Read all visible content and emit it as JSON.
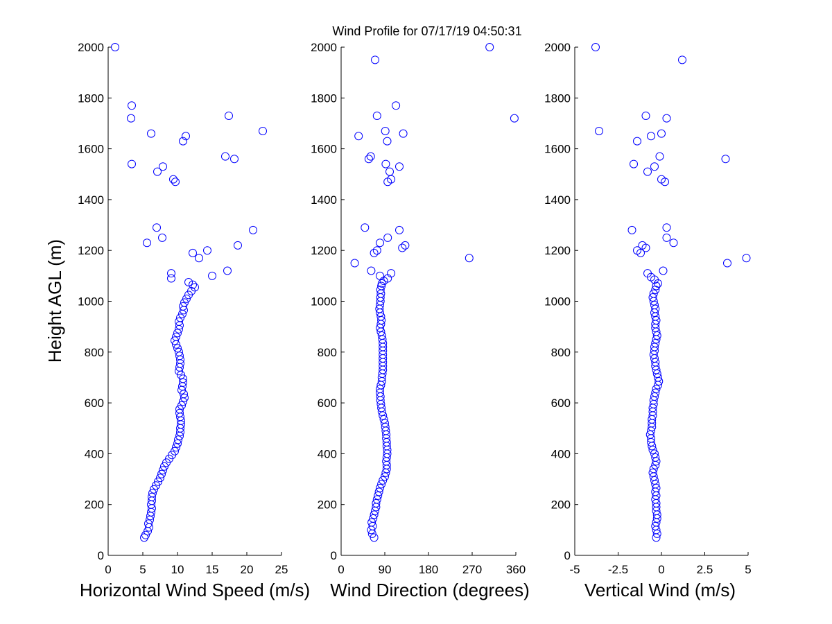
{
  "chart_data": [
    {
      "id": "speed",
      "type": "scatter",
      "title": "Wind Profile for  07/17/19 04:50:31",
      "xlabel": "Horizontal Wind Speed (m/s)",
      "ylabel": "Height AGL (m)",
      "xlim": [
        0,
        25
      ],
      "ylim": [
        0,
        2000
      ],
      "xticks": [
        "0",
        "5",
        "10",
        "15",
        "20",
        "25"
      ],
      "yticks": [
        "0",
        "200",
        "400",
        "600",
        "800",
        "1000",
        "1200",
        "1400",
        "1600",
        "1800",
        "2000"
      ],
      "marker_color": "#0000ff",
      "points": [
        [
          5.2,
          70
        ],
        [
          5.4,
          80
        ],
        [
          5.7,
          95
        ],
        [
          5.9,
          110
        ],
        [
          5.8,
          125
        ],
        [
          6.0,
          140
        ],
        [
          6.1,
          155
        ],
        [
          6.2,
          170
        ],
        [
          6.3,
          185
        ],
        [
          6.2,
          200
        ],
        [
          6.3,
          215
        ],
        [
          6.3,
          230
        ],
        [
          6.4,
          245
        ],
        [
          6.6,
          260
        ],
        [
          6.9,
          275
        ],
        [
          7.2,
          290
        ],
        [
          7.5,
          305
        ],
        [
          7.7,
          320
        ],
        [
          7.9,
          335
        ],
        [
          8.1,
          350
        ],
        [
          8.4,
          365
        ],
        [
          8.8,
          380
        ],
        [
          9.2,
          395
        ],
        [
          9.6,
          410
        ],
        [
          9.8,
          425
        ],
        [
          10.0,
          440
        ],
        [
          10.1,
          455
        ],
        [
          10.3,
          470
        ],
        [
          10.4,
          485
        ],
        [
          10.4,
          500
        ],
        [
          10.5,
          515
        ],
        [
          10.5,
          530
        ],
        [
          10.4,
          545
        ],
        [
          10.3,
          560
        ],
        [
          10.3,
          575
        ],
        [
          10.6,
          590
        ],
        [
          10.8,
          605
        ],
        [
          11.0,
          620
        ],
        [
          10.9,
          635
        ],
        [
          10.6,
          650
        ],
        [
          10.7,
          665
        ],
        [
          10.8,
          680
        ],
        [
          10.8,
          695
        ],
        [
          10.5,
          710
        ],
        [
          10.2,
          725
        ],
        [
          10.3,
          740
        ],
        [
          10.4,
          755
        ],
        [
          10.4,
          770
        ],
        [
          10.3,
          785
        ],
        [
          10.2,
          800
        ],
        [
          10.0,
          815
        ],
        [
          9.8,
          830
        ],
        [
          9.6,
          845
        ],
        [
          9.8,
          860
        ],
        [
          10.0,
          875
        ],
        [
          10.2,
          890
        ],
        [
          10.3,
          905
        ],
        [
          10.2,
          920
        ],
        [
          10.4,
          935
        ],
        [
          10.7,
          950
        ],
        [
          10.9,
          965
        ],
        [
          10.8,
          980
        ],
        [
          11.0,
          995
        ],
        [
          11.3,
          1010
        ],
        [
          11.6,
          1025
        ],
        [
          12.0,
          1040
        ],
        [
          12.5,
          1055
        ],
        [
          12.2,
          1065
        ],
        [
          11.6,
          1075
        ],
        [
          9.1,
          1090
        ],
        [
          9.1,
          1110
        ],
        [
          13.1,
          1170
        ],
        [
          12.2,
          1190
        ],
        [
          14.3,
          1200
        ],
        [
          18.7,
          1220
        ],
        [
          5.6,
          1230
        ],
        [
          7.8,
          1250
        ],
        [
          7.0,
          1290
        ],
        [
          20.9,
          1280
        ],
        [
          15.0,
          1100
        ],
        [
          17.2,
          1120
        ],
        [
          7.1,
          1510
        ],
        [
          7.9,
          1530
        ],
        [
          3.4,
          1540
        ],
        [
          9.4,
          1480
        ],
        [
          9.7,
          1470
        ],
        [
          18.2,
          1560
        ],
        [
          16.9,
          1570
        ],
        [
          10.8,
          1630
        ],
        [
          11.2,
          1650
        ],
        [
          6.2,
          1660
        ],
        [
          22.3,
          1670
        ],
        [
          3.3,
          1720
        ],
        [
          3.4,
          1770
        ],
        [
          17.4,
          1730
        ],
        [
          1.0,
          2000
        ]
      ]
    },
    {
      "id": "direction",
      "type": "scatter",
      "xlabel": "Wind Direction (degrees)",
      "xlim": [
        0,
        360
      ],
      "ylim": [
        0,
        2000
      ],
      "xticks": [
        "0",
        "90",
        "180",
        "270",
        "360"
      ],
      "yticks": [
        "0",
        "200",
        "400",
        "600",
        "800",
        "1000",
        "1200",
        "1400",
        "1600",
        "1800",
        "2000"
      ],
      "marker_color": "#0000ff",
      "points": [
        [
          68,
          70
        ],
        [
          64,
          85
        ],
        [
          62,
          100
        ],
        [
          65,
          115
        ],
        [
          63,
          130
        ],
        [
          66,
          145
        ],
        [
          68,
          160
        ],
        [
          70,
          175
        ],
        [
          72,
          190
        ],
        [
          72,
          205
        ],
        [
          74,
          220
        ],
        [
          76,
          235
        ],
        [
          78,
          250
        ],
        [
          80,
          265
        ],
        [
          83,
          280
        ],
        [
          86,
          295
        ],
        [
          90,
          310
        ],
        [
          92,
          325
        ],
        [
          94,
          340
        ],
        [
          94,
          355
        ],
        [
          93,
          370
        ],
        [
          94,
          385
        ],
        [
          95,
          400
        ],
        [
          95,
          415
        ],
        [
          94,
          430
        ],
        [
          94,
          445
        ],
        [
          93,
          460
        ],
        [
          93,
          475
        ],
        [
          92,
          490
        ],
        [
          91,
          505
        ],
        [
          90,
          520
        ],
        [
          88,
          535
        ],
        [
          86,
          550
        ],
        [
          84,
          565
        ],
        [
          83,
          580
        ],
        [
          82,
          595
        ],
        [
          81,
          610
        ],
        [
          81,
          625
        ],
        [
          80,
          640
        ],
        [
          80,
          655
        ],
        [
          82,
          670
        ],
        [
          84,
          685
        ],
        [
          84,
          700
        ],
        [
          85,
          715
        ],
        [
          86,
          730
        ],
        [
          86,
          745
        ],
        [
          86,
          760
        ],
        [
          86,
          775
        ],
        [
          86,
          790
        ],
        [
          86,
          805
        ],
        [
          86,
          820
        ],
        [
          86,
          835
        ],
        [
          85,
          850
        ],
        [
          84,
          865
        ],
        [
          82,
          880
        ],
        [
          80,
          895
        ],
        [
          82,
          910
        ],
        [
          83,
          925
        ],
        [
          82,
          940
        ],
        [
          80,
          955
        ],
        [
          79,
          970
        ],
        [
          80,
          985
        ],
        [
          81,
          1000
        ],
        [
          81,
          1015
        ],
        [
          82,
          1030
        ],
        [
          81,
          1045
        ],
        [
          83,
          1060
        ],
        [
          84,
          1070
        ],
        [
          88,
          1080
        ],
        [
          96,
          1090
        ],
        [
          80,
          1100
        ],
        [
          103,
          1110
        ],
        [
          62,
          1120
        ],
        [
          28,
          1150
        ],
        [
          264,
          1170
        ],
        [
          68,
          1190
        ],
        [
          74,
          1200
        ],
        [
          126,
          1210
        ],
        [
          132,
          1220
        ],
        [
          80,
          1230
        ],
        [
          96,
          1250
        ],
        [
          120,
          1280
        ],
        [
          49,
          1290
        ],
        [
          103,
          1480
        ],
        [
          96,
          1470
        ],
        [
          100,
          1510
        ],
        [
          120,
          1530
        ],
        [
          92,
          1540
        ],
        [
          57,
          1560
        ],
        [
          61,
          1570
        ],
        [
          95,
          1630
        ],
        [
          36,
          1650
        ],
        [
          128,
          1660
        ],
        [
          91,
          1670
        ],
        [
          357,
          1720
        ],
        [
          74,
          1730
        ],
        [
          113,
          1770
        ],
        [
          70,
          1950
        ],
        [
          306,
          2000
        ]
      ]
    },
    {
      "id": "vertical",
      "type": "scatter",
      "xlabel": "Vertical Wind (m/s)",
      "xlim": [
        -5,
        5
      ],
      "ylim": [
        0,
        2000
      ],
      "xticks": [
        "-5",
        "-2.5",
        "0",
        "2.5",
        "5"
      ],
      "yticks": [
        "0",
        "200",
        "400",
        "600",
        "800",
        "1000",
        "1200",
        "1400",
        "1600",
        "1800",
        "2000"
      ],
      "marker_color": "#0000ff",
      "points": [
        [
          -0.3,
          70
        ],
        [
          -0.25,
          85
        ],
        [
          -0.3,
          100
        ],
        [
          -0.35,
          115
        ],
        [
          -0.3,
          130
        ],
        [
          -0.25,
          145
        ],
        [
          -0.25,
          160
        ],
        [
          -0.3,
          175
        ],
        [
          -0.3,
          190
        ],
        [
          -0.3,
          205
        ],
        [
          -0.35,
          220
        ],
        [
          -0.3,
          235
        ],
        [
          -0.35,
          250
        ],
        [
          -0.3,
          265
        ],
        [
          -0.35,
          280
        ],
        [
          -0.4,
          295
        ],
        [
          -0.45,
          310
        ],
        [
          -0.5,
          325
        ],
        [
          -0.45,
          340
        ],
        [
          -0.35,
          355
        ],
        [
          -0.3,
          370
        ],
        [
          -0.35,
          385
        ],
        [
          -0.4,
          400
        ],
        [
          -0.5,
          415
        ],
        [
          -0.55,
          430
        ],
        [
          -0.6,
          445
        ],
        [
          -0.6,
          460
        ],
        [
          -0.65,
          475
        ],
        [
          -0.6,
          490
        ],
        [
          -0.55,
          505
        ],
        [
          -0.55,
          520
        ],
        [
          -0.55,
          535
        ],
        [
          -0.5,
          550
        ],
        [
          -0.5,
          565
        ],
        [
          -0.5,
          580
        ],
        [
          -0.45,
          595
        ],
        [
          -0.45,
          610
        ],
        [
          -0.4,
          625
        ],
        [
          -0.35,
          640
        ],
        [
          -0.3,
          655
        ],
        [
          -0.2,
          670
        ],
        [
          -0.15,
          685
        ],
        [
          -0.2,
          700
        ],
        [
          -0.25,
          715
        ],
        [
          -0.3,
          730
        ],
        [
          -0.35,
          745
        ],
        [
          -0.35,
          760
        ],
        [
          -0.4,
          775
        ],
        [
          -0.45,
          790
        ],
        [
          -0.4,
          805
        ],
        [
          -0.4,
          820
        ],
        [
          -0.35,
          835
        ],
        [
          -0.3,
          850
        ],
        [
          -0.25,
          865
        ],
        [
          -0.3,
          880
        ],
        [
          -0.35,
          895
        ],
        [
          -0.35,
          910
        ],
        [
          -0.3,
          925
        ],
        [
          -0.35,
          940
        ],
        [
          -0.4,
          955
        ],
        [
          -0.35,
          970
        ],
        [
          -0.4,
          985
        ],
        [
          -0.45,
          1000
        ],
        [
          -0.5,
          1015
        ],
        [
          -0.45,
          1030
        ],
        [
          -0.35,
          1045
        ],
        [
          -0.3,
          1060
        ],
        [
          -0.2,
          1070
        ],
        [
          -0.4,
          1085
        ],
        [
          -0.6,
          1095
        ],
        [
          -0.8,
          1110
        ],
        [
          0.1,
          1120
        ],
        [
          3.8,
          1150
        ],
        [
          4.9,
          1170
        ],
        [
          -1.2,
          1190
        ],
        [
          -1.4,
          1200
        ],
        [
          -0.9,
          1210
        ],
        [
          -1.1,
          1220
        ],
        [
          0.7,
          1230
        ],
        [
          0.3,
          1250
        ],
        [
          -1.7,
          1280
        ],
        [
          0.3,
          1290
        ],
        [
          0.0,
          1480
        ],
        [
          0.2,
          1470
        ],
        [
          -0.8,
          1510
        ],
        [
          -0.4,
          1530
        ],
        [
          -1.6,
          1540
        ],
        [
          3.7,
          1560
        ],
        [
          -0.1,
          1570
        ],
        [
          -1.4,
          1630
        ],
        [
          -0.6,
          1650
        ],
        [
          0.0,
          1660
        ],
        [
          -3.6,
          1670
        ],
        [
          0.3,
          1720
        ],
        [
          -0.9,
          1730
        ],
        [
          1.2,
          1950
        ],
        [
          -3.8,
          2000
        ]
      ]
    }
  ]
}
